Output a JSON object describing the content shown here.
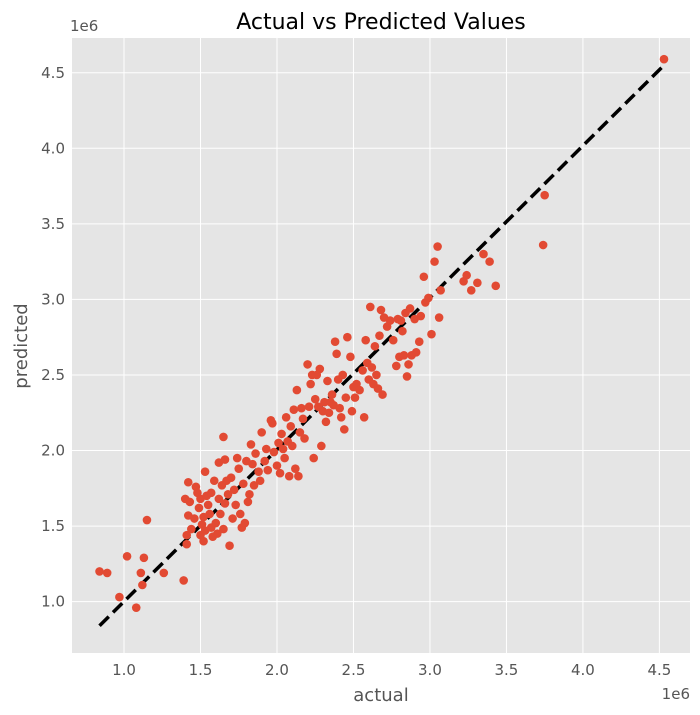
{
  "chart_data": {
    "type": "scatter",
    "title": "Actual vs Predicted Values",
    "xlabel": "actual",
    "ylabel": "predicted",
    "x_offset_label": "1e6",
    "y_offset_label": "1e6",
    "xlim": [
      0.66,
      4.7
    ],
    "ylim": [
      0.66,
      4.73
    ],
    "x_ticks": [
      1.0,
      1.5,
      2.0,
      2.5,
      3.0,
      3.5,
      4.0,
      4.5
    ],
    "x_tick_labels": [
      "1.0",
      "1.5",
      "2.0",
      "2.5",
      "3.0",
      "3.5",
      "4.0",
      "4.5"
    ],
    "y_ticks": [
      1.0,
      1.5,
      2.0,
      2.5,
      3.0,
      3.5,
      4.0,
      4.5
    ],
    "y_tick_labels": [
      "1.0",
      "1.5",
      "2.0",
      "2.5",
      "3.0",
      "3.5",
      "4.0",
      "4.5"
    ],
    "grid": true,
    "style": "ggplot",
    "colors": {
      "points": "#e24a33",
      "reference_line": "#000000",
      "plot_background": "#e5e5e5",
      "grid": "#ffffff"
    },
    "reference_line": {
      "from": [
        0.84,
        0.84
      ],
      "to": [
        4.53,
        4.55
      ],
      "style": "dashed"
    },
    "series": [
      {
        "points": [
          [
            0.84,
            1.2
          ],
          [
            0.89,
            1.19
          ],
          [
            0.97,
            1.03
          ],
          [
            1.02,
            1.3
          ],
          [
            1.08,
            0.96
          ],
          [
            1.11,
            1.19
          ],
          [
            1.12,
            1.11
          ],
          [
            1.13,
            1.29
          ],
          [
            1.15,
            1.54
          ],
          [
            1.26,
            1.19
          ],
          [
            1.39,
            1.14
          ],
          [
            1.4,
            1.68
          ],
          [
            1.41,
            1.44
          ],
          [
            1.41,
            1.38
          ],
          [
            1.42,
            1.57
          ],
          [
            1.42,
            1.79
          ],
          [
            1.43,
            1.66
          ],
          [
            1.44,
            1.48
          ],
          [
            1.46,
            1.55
          ],
          [
            1.47,
            1.76
          ],
          [
            1.48,
            1.72
          ],
          [
            1.49,
            1.62
          ],
          [
            1.5,
            1.44
          ],
          [
            1.5,
            1.68
          ],
          [
            1.51,
            1.51
          ],
          [
            1.52,
            1.4
          ],
          [
            1.52,
            1.56
          ],
          [
            1.53,
            1.86
          ],
          [
            1.53,
            1.47
          ],
          [
            1.54,
            1.7
          ],
          [
            1.55,
            1.64
          ],
          [
            1.56,
            1.58
          ],
          [
            1.57,
            1.72
          ],
          [
            1.57,
            1.49
          ],
          [
            1.58,
            1.43
          ],
          [
            1.59,
            1.8
          ],
          [
            1.6,
            1.52
          ],
          [
            1.61,
            1.45
          ],
          [
            1.62,
            1.68
          ],
          [
            1.62,
            1.92
          ],
          [
            1.63,
            1.58
          ],
          [
            1.64,
            1.77
          ],
          [
            1.65,
            1.48
          ],
          [
            1.65,
            2.09
          ],
          [
            1.66,
            1.94
          ],
          [
            1.66,
            1.65
          ],
          [
            1.67,
            1.8
          ],
          [
            1.68,
            1.71
          ],
          [
            1.69,
            1.37
          ],
          [
            1.7,
            1.82
          ],
          [
            1.71,
            1.55
          ],
          [
            1.72,
            1.74
          ],
          [
            1.73,
            1.64
          ],
          [
            1.74,
            1.95
          ],
          [
            1.75,
            1.88
          ],
          [
            1.76,
            1.58
          ],
          [
            1.77,
            1.49
          ],
          [
            1.78,
            1.78
          ],
          [
            1.79,
            1.52
          ],
          [
            1.8,
            1.93
          ],
          [
            1.81,
            1.66
          ],
          [
            1.82,
            1.71
          ],
          [
            1.83,
            2.04
          ],
          [
            1.84,
            1.91
          ],
          [
            1.85,
            1.77
          ],
          [
            1.86,
            1.98
          ],
          [
            1.88,
            1.86
          ],
          [
            1.89,
            1.8
          ],
          [
            1.9,
            2.12
          ],
          [
            1.92,
            1.93
          ],
          [
            1.93,
            2.01
          ],
          [
            1.94,
            1.87
          ],
          [
            1.96,
            2.2
          ],
          [
            1.97,
            2.18
          ],
          [
            1.98,
            1.99
          ],
          [
            2.0,
            1.9
          ],
          [
            2.01,
            2.05
          ],
          [
            2.02,
            1.85
          ],
          [
            2.03,
            2.11
          ],
          [
            2.04,
            2.01
          ],
          [
            2.05,
            1.95
          ],
          [
            2.06,
            2.22
          ],
          [
            2.07,
            2.06
          ],
          [
            2.08,
            1.83
          ],
          [
            2.09,
            2.16
          ],
          [
            2.1,
            2.03
          ],
          [
            2.11,
            2.27
          ],
          [
            2.12,
            1.88
          ],
          [
            2.13,
            2.4
          ],
          [
            2.14,
            1.83
          ],
          [
            2.15,
            2.12
          ],
          [
            2.16,
            2.28
          ],
          [
            2.17,
            2.21
          ],
          [
            2.18,
            2.08
          ],
          [
            2.2,
            2.57
          ],
          [
            2.21,
            2.29
          ],
          [
            2.22,
            2.44
          ],
          [
            2.23,
            2.5
          ],
          [
            2.24,
            1.95
          ],
          [
            2.25,
            2.34
          ],
          [
            2.26,
            2.5
          ],
          [
            2.27,
            2.29
          ],
          [
            2.28,
            2.54
          ],
          [
            2.29,
            2.03
          ],
          [
            2.3,
            2.26
          ],
          [
            2.31,
            2.32
          ],
          [
            2.32,
            2.19
          ],
          [
            2.33,
            2.46
          ],
          [
            2.34,
            2.25
          ],
          [
            2.35,
            2.32
          ],
          [
            2.36,
            2.37
          ],
          [
            2.37,
            2.3
          ],
          [
            2.38,
            2.72
          ],
          [
            2.39,
            2.64
          ],
          [
            2.4,
            2.47
          ],
          [
            2.41,
            2.28
          ],
          [
            2.42,
            2.22
          ],
          [
            2.43,
            2.5
          ],
          [
            2.44,
            2.14
          ],
          [
            2.45,
            2.35
          ],
          [
            2.46,
            2.75
          ],
          [
            2.48,
            2.62
          ],
          [
            2.49,
            2.26
          ],
          [
            2.5,
            2.42
          ],
          [
            2.51,
            2.35
          ],
          [
            2.52,
            2.44
          ],
          [
            2.54,
            2.4
          ],
          [
            2.56,
            2.53
          ],
          [
            2.57,
            2.22
          ],
          [
            2.58,
            2.73
          ],
          [
            2.59,
            2.58
          ],
          [
            2.6,
            2.47
          ],
          [
            2.61,
            2.95
          ],
          [
            2.62,
            2.55
          ],
          [
            2.63,
            2.44
          ],
          [
            2.64,
            2.69
          ],
          [
            2.65,
            2.5
          ],
          [
            2.66,
            2.41
          ],
          [
            2.67,
            2.76
          ],
          [
            2.68,
            2.93
          ],
          [
            2.69,
            2.37
          ],
          [
            2.7,
            2.88
          ],
          [
            2.72,
            2.82
          ],
          [
            2.74,
            2.86
          ],
          [
            2.76,
            2.73
          ],
          [
            2.78,
            2.56
          ],
          [
            2.79,
            2.87
          ],
          [
            2.8,
            2.62
          ],
          [
            2.81,
            2.86
          ],
          [
            2.82,
            2.79
          ],
          [
            2.83,
            2.63
          ],
          [
            2.84,
            2.91
          ],
          [
            2.85,
            2.49
          ],
          [
            2.86,
            2.57
          ],
          [
            2.87,
            2.94
          ],
          [
            2.88,
            2.63
          ],
          [
            2.9,
            2.87
          ],
          [
            2.91,
            2.65
          ],
          [
            2.93,
            2.72
          ],
          [
            2.94,
            2.89
          ],
          [
            2.96,
            3.15
          ],
          [
            2.97,
            2.98
          ],
          [
            2.99,
            3.01
          ],
          [
            3.01,
            2.77
          ],
          [
            3.03,
            3.25
          ],
          [
            3.05,
            3.35
          ],
          [
            3.06,
            2.88
          ],
          [
            3.07,
            3.06
          ],
          [
            3.22,
            3.12
          ],
          [
            3.24,
            3.16
          ],
          [
            3.27,
            3.06
          ],
          [
            3.31,
            3.11
          ],
          [
            3.35,
            3.3
          ],
          [
            3.39,
            3.25
          ],
          [
            3.43,
            3.09
          ],
          [
            3.74,
            3.36
          ],
          [
            3.75,
            3.69
          ],
          [
            4.53,
            4.59
          ]
        ]
      }
    ]
  }
}
